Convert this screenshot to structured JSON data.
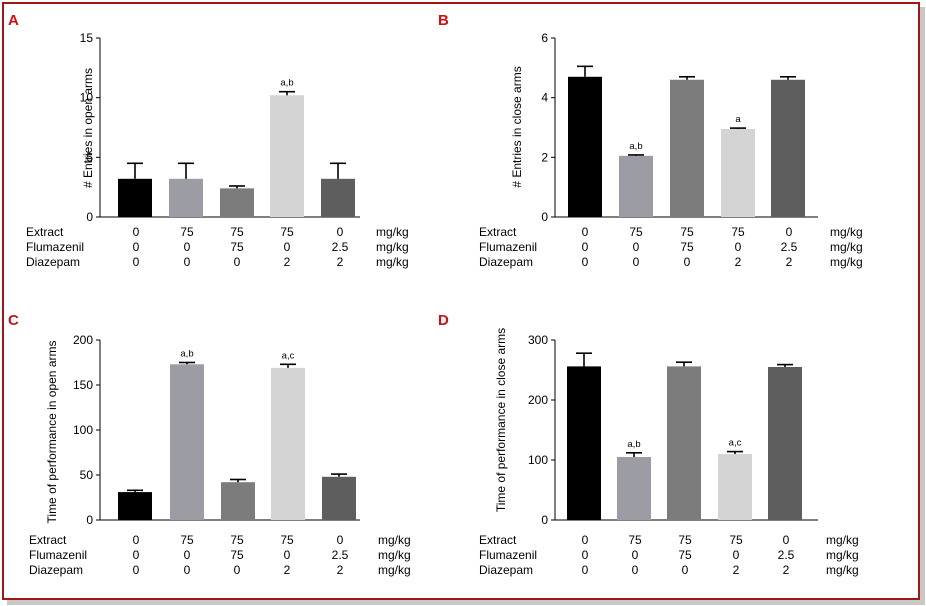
{
  "panel_letters": [
    "A",
    "B",
    "C",
    "D"
  ],
  "chart_data": [
    {
      "type": "bar",
      "panel": "A",
      "ylabel": "# Entries in open arms",
      "ylim": [
        0,
        15
      ],
      "yticks": [
        "0",
        "5",
        "10",
        "15"
      ],
      "bar_colors": [
        "#000000",
        "#9c9ca4",
        "#7c7c7c",
        "#d4d4d4",
        "#5e5e5e"
      ],
      "values": [
        3.2,
        3.2,
        2.4,
        10.2,
        3.2
      ],
      "errors": [
        1.3,
        1.3,
        0.2,
        0.3,
        1.3
      ],
      "annotations": [
        "",
        "",
        "",
        "a,b",
        ""
      ],
      "table": {
        "rows": [
          {
            "label": "Extract",
            "values": [
              "0",
              "75",
              "75",
              "75",
              "0"
            ],
            "unit": "mg/kg"
          },
          {
            "label": "Flumazenil",
            "values": [
              "0",
              "0",
              "75",
              "0",
              "2.5"
            ],
            "unit": "mg/kg"
          },
          {
            "label": "Diazepam",
            "values": [
              "0",
              "0",
              "0",
              "2",
              "2"
            ],
            "unit": "mg/kg"
          }
        ]
      }
    },
    {
      "type": "bar",
      "panel": "B",
      "ylabel": "# Entries in close arms",
      "ylim": [
        0,
        6
      ],
      "yticks": [
        "0",
        "2",
        "4",
        "6"
      ],
      "bar_colors": [
        "#000000",
        "#9c9ca4",
        "#7c7c7c",
        "#d4d4d4",
        "#5e5e5e"
      ],
      "values": [
        4.7,
        2.05,
        4.6,
        2.95,
        4.6
      ],
      "errors": [
        0.35,
        0.03,
        0.1,
        0.03,
        0.1
      ],
      "annotations": [
        "",
        "a,b",
        "",
        "a",
        ""
      ],
      "table": {
        "rows": [
          {
            "label": "Extract",
            "values": [
              "0",
              "75",
              "75",
              "75",
              "0"
            ],
            "unit": "mg/kg"
          },
          {
            "label": "Flumazenil",
            "values": [
              "0",
              "0",
              "75",
              "0",
              "2.5"
            ],
            "unit": "mg/kg"
          },
          {
            "label": "Diazepam",
            "values": [
              "0",
              "0",
              "0",
              "2",
              "2"
            ],
            "unit": "mg/kg"
          }
        ]
      }
    },
    {
      "type": "bar",
      "panel": "C",
      "ylabel": "Time of performance in open arms",
      "ylim": [
        0,
        200
      ],
      "yticks": [
        "0",
        "50",
        "100",
        "150",
        "200"
      ],
      "bar_colors": [
        "#000000",
        "#9c9ca4",
        "#7c7c7c",
        "#d4d4d4",
        "#5e5e5e"
      ],
      "values": [
        31,
        173,
        42,
        169,
        48
      ],
      "errors": [
        2,
        2,
        3,
        4,
        3
      ],
      "annotations": [
        "",
        "a,b",
        "",
        "a,c",
        ""
      ],
      "table": {
        "rows": [
          {
            "label": "Extract",
            "values": [
              "0",
              "75",
              "75",
              "75",
              "0"
            ],
            "unit": "mg/kg"
          },
          {
            "label": "Flumazenil",
            "values": [
              "0",
              "0",
              "75",
              "0",
              "2.5"
            ],
            "unit": "mg/kg"
          },
          {
            "label": "Diazepam",
            "values": [
              "0",
              "0",
              "0",
              "2",
              "2"
            ],
            "unit": "mg/kg"
          }
        ]
      }
    },
    {
      "type": "bar",
      "panel": "D",
      "ylabel": "Time of performance in close arms",
      "ylim": [
        0,
        300
      ],
      "yticks": [
        "0",
        "100",
        "200",
        "300"
      ],
      "bar_colors": [
        "#000000",
        "#9c9ca4",
        "#7c7c7c",
        "#d4d4d4",
        "#5e5e5e"
      ],
      "values": [
        256,
        105,
        256,
        110,
        255
      ],
      "errors": [
        22,
        7,
        7,
        4,
        4
      ],
      "annotations": [
        "",
        "a,b",
        "",
        "a,c",
        ""
      ],
      "table": {
        "rows": [
          {
            "label": "Extract",
            "values": [
              "0",
              "75",
              "75",
              "75",
              "0"
            ],
            "unit": "mg/kg"
          },
          {
            "label": "Flumazenil",
            "values": [
              "0",
              "0",
              "75",
              "0",
              "2.5"
            ],
            "unit": "mg/kg"
          },
          {
            "label": "Diazepam",
            "values": [
              "0",
              "0",
              "0",
              "2",
              "2"
            ],
            "unit": "mg/kg"
          }
        ]
      }
    }
  ]
}
